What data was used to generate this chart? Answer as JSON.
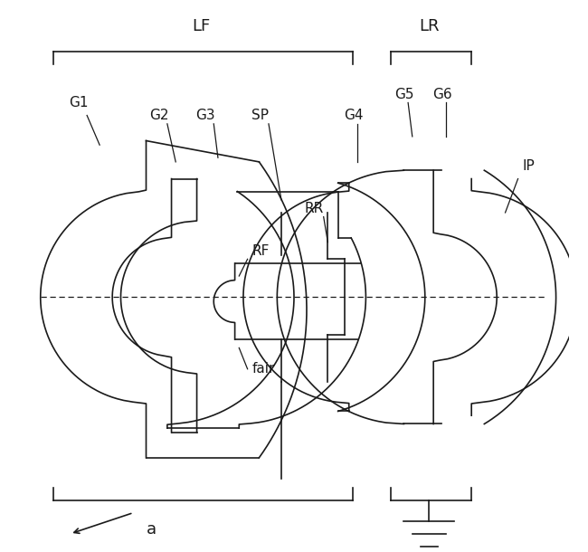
{
  "bg_color": "#ffffff",
  "line_color": "#1a1a1a",
  "lw": 1.2,
  "figsize": [
    6.5,
    6.1
  ],
  "dpi": 100,
  "xlim": [
    0,
    130
  ],
  "ylim": [
    -60,
    70
  ],
  "optical_axis_y": 0
}
